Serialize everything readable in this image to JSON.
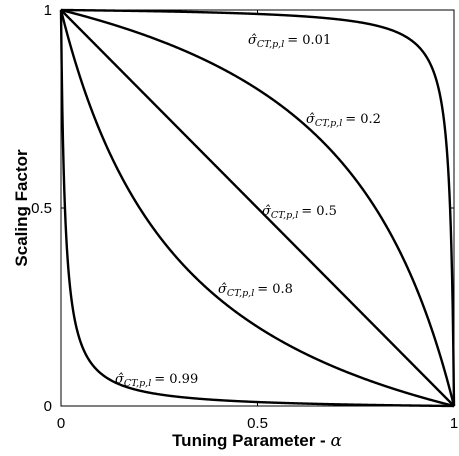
{
  "chart_data": {
    "type": "line",
    "title": "",
    "xlabel": "Tuning Parameter - α",
    "xlabel_text": "Tuning Parameter - ",
    "xlabel_symbol": "α",
    "ylabel": "Scaling Factor",
    "xlim": [
      0,
      1
    ],
    "ylim": [
      0,
      1
    ],
    "xticks": [
      0,
      0.5,
      1
    ],
    "yticks": [
      0,
      0.5,
      1
    ],
    "xtick_labels": [
      "0",
      "0.5",
      "1"
    ],
    "ytick_labels": [
      "0",
      "0.5",
      "1"
    ],
    "grid": false,
    "legend": "none",
    "line_color": "#000000",
    "series": [
      {
        "name": "σ̂_{CT,p,l} = 0.01",
        "value_label": "= 0.01",
        "param": 0.01
      },
      {
        "name": "σ̂_{CT,p,l} = 0.2",
        "value_label": "= 0.2",
        "param": 0.2
      },
      {
        "name": "σ̂_{CT,p,l} = 0.5",
        "value_label": "= 0.5",
        "param": 0.5
      },
      {
        "name": "σ̂_{CT,p,l} = 0.8",
        "value_label": "= 0.8",
        "param": 0.8
      },
      {
        "name": "σ̂_{CT,p,l} = 0.99",
        "value_label": "= 0.99",
        "param": 0.99
      }
    ]
  }
}
